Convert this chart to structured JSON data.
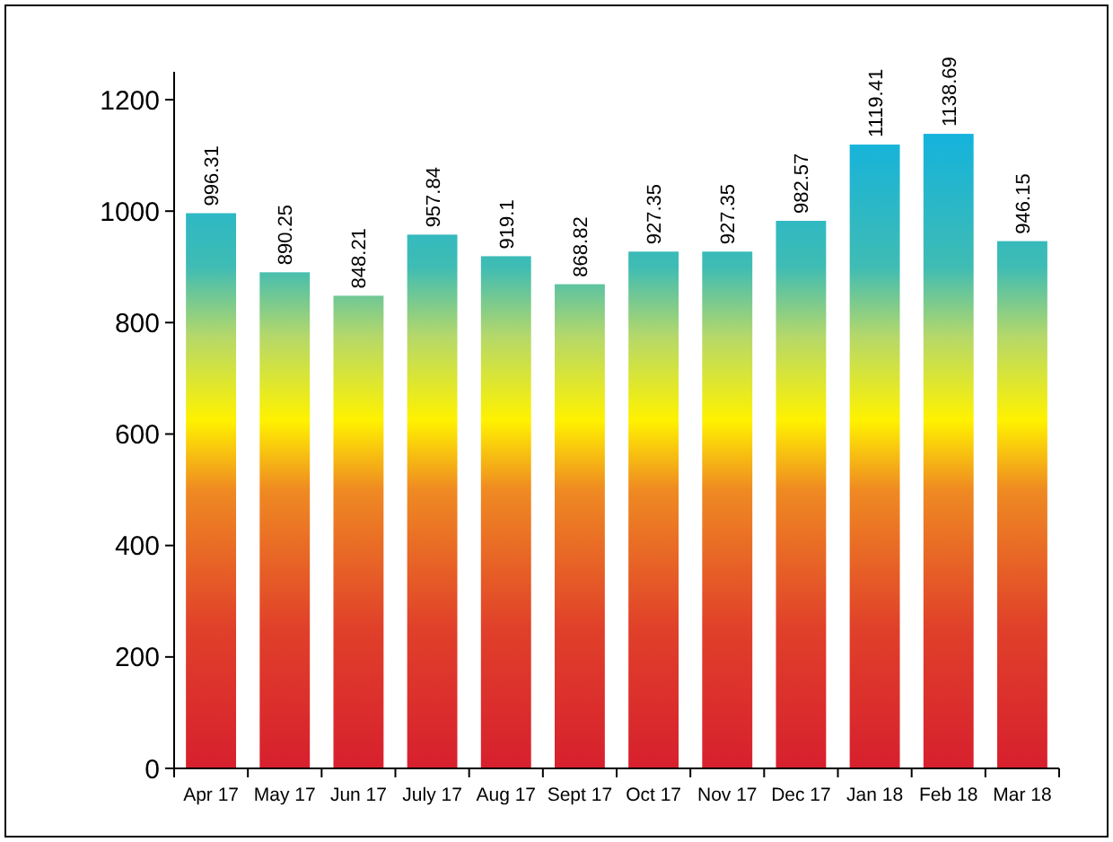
{
  "chart_data": {
    "type": "bar",
    "categories": [
      "Apr 17",
      "May 17",
      "Jun 17",
      "July 17",
      "Aug 17",
      "Sept 17",
      "Oct 17",
      "Nov 17",
      "Dec 17",
      "Jan 18",
      "Feb 18",
      "Mar 18"
    ],
    "values": [
      996.31,
      890.25,
      848.21,
      957.84,
      919.1,
      868.82,
      927.35,
      927.35,
      982.57,
      1119.41,
      1138.69,
      946.15
    ],
    "ylim": [
      0,
      1250
    ],
    "yticks": [
      0,
      200,
      400,
      600,
      800,
      1000,
      1200
    ],
    "data_labels": true
  }
}
